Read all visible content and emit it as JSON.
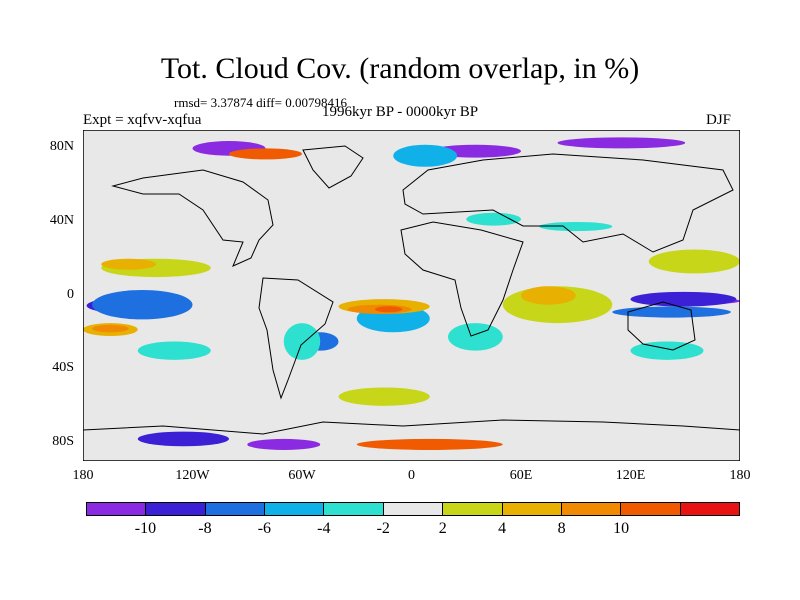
{
  "title": "Tot. Cloud Cov. (random overlap, in %)",
  "stats": "rmsd= 3.37874 diff= 0.00798416",
  "experiment": "Expt = xqfvv-xqfua",
  "period": "1996kyr BP - 0000kyr BP",
  "season": "DJF",
  "map": {
    "lat_labels": [
      "80N",
      "40N",
      "0",
      "40S",
      "80S"
    ],
    "lat_values": [
      80,
      40,
      0,
      -40,
      -80
    ],
    "lon_labels": [
      "180",
      "120W",
      "60W",
      "0",
      "60E",
      "120E",
      "180"
    ],
    "lon_values": [
      -180,
      -120,
      -60,
      0,
      60,
      120,
      180
    ],
    "lon_range": [
      -180,
      180
    ],
    "lat_range": [
      -90,
      90
    ]
  },
  "colorbar": {
    "colors": [
      "#8a2be2",
      "#3b20d6",
      "#1e6fe0",
      "#10b0e8",
      "#2de0cf",
      "#e8e8e8",
      "#c8d61a",
      "#e8b000",
      "#f08a00",
      "#f05a00",
      "#e81414"
    ],
    "labels": [
      "-10",
      "-8",
      "-6",
      "-4",
      "-2",
      "2",
      "4",
      "8",
      "10"
    ],
    "label_after_bin": [
      1,
      2,
      3,
      4,
      5,
      6,
      7,
      8,
      9
    ]
  },
  "regions": [
    {
      "cat": "-10",
      "lon": [
        -175,
        -150
      ],
      "lat": [
        -2,
        -8
      ]
    },
    {
      "cat": "-10",
      "lon": [
        -90,
        -50
      ],
      "lat": [
        -78,
        -84
      ]
    },
    {
      "cat": "-10",
      "lon": [
        -120,
        -80
      ],
      "lat": [
        76,
        84
      ]
    },
    {
      "cat": "-10",
      "lon": [
        10,
        60
      ],
      "lat": [
        75,
        82
      ]
    },
    {
      "cat": "-10",
      "lon": [
        130,
        180
      ],
      "lat": [
        -1,
        -5
      ]
    },
    {
      "cat": "-10",
      "lon": [
        80,
        150
      ],
      "lat": [
        80,
        86
      ]
    },
    {
      "cat": "-8",
      "lon": [
        -178,
        -130
      ],
      "lat": [
        -1,
        -10
      ]
    },
    {
      "cat": "-8",
      "lon": [
        120,
        178
      ],
      "lat": [
        2,
        -6
      ]
    },
    {
      "cat": "-8",
      "lon": [
        -150,
        -100
      ],
      "lat": [
        -74,
        -82
      ]
    },
    {
      "cat": "-6",
      "lon": [
        -175,
        -120
      ],
      "lat": [
        3,
        -13
      ]
    },
    {
      "cat": "-6",
      "lon": [
        -60,
        -40
      ],
      "lat": [
        -20,
        -30
      ]
    },
    {
      "cat": "-6",
      "lon": [
        110,
        175
      ],
      "lat": [
        -6,
        -12
      ]
    },
    {
      "cat": "-4",
      "lon": [
        -30,
        10
      ],
      "lat": [
        -5,
        -20
      ]
    },
    {
      "cat": "-4",
      "lon": [
        -10,
        25
      ],
      "lat": [
        70,
        82
      ]
    },
    {
      "cat": "-2",
      "lon": [
        30,
        60
      ],
      "lat": [
        45,
        38
      ]
    },
    {
      "cat": "-2",
      "lon": [
        70,
        110
      ],
      "lat": [
        40,
        35
      ]
    },
    {
      "cat": "-2",
      "lon": [
        -70,
        -50
      ],
      "lat": [
        -15,
        -35
      ]
    },
    {
      "cat": "-2",
      "lon": [
        20,
        50
      ],
      "lat": [
        -15,
        -30
      ]
    },
    {
      "cat": "-2",
      "lon": [
        -150,
        -110
      ],
      "lat": [
        -25,
        -35
      ]
    },
    {
      "cat": "-2",
      "lon": [
        120,
        160
      ],
      "lat": [
        -25,
        -35
      ]
    },
    {
      "cat": "2",
      "lon": [
        -170,
        -110
      ],
      "lat": [
        20,
        10
      ]
    },
    {
      "cat": "2",
      "lon": [
        50,
        110
      ],
      "lat": [
        5,
        -15
      ]
    },
    {
      "cat": "2",
      "lon": [
        130,
        180
      ],
      "lat": [
        25,
        12
      ]
    },
    {
      "cat": "2",
      "lon": [
        -40,
        10
      ],
      "lat": [
        -50,
        -60
      ]
    },
    {
      "cat": "4",
      "lon": [
        -170,
        -140
      ],
      "lat": [
        20,
        14
      ]
    },
    {
      "cat": "4",
      "lon": [
        -180,
        -150
      ],
      "lat": [
        -15,
        -22
      ]
    },
    {
      "cat": "4",
      "lon": [
        60,
        90
      ],
      "lat": [
        5,
        -5
      ]
    },
    {
      "cat": "4",
      "lon": [
        -40,
        10
      ],
      "lat": [
        -2,
        -10
      ]
    },
    {
      "cat": "8",
      "lon": [
        -35,
        0
      ],
      "lat": [
        -5,
        -10
      ]
    },
    {
      "cat": "8",
      "lon": [
        -175,
        -155
      ],
      "lat": [
        -16,
        -20
      ]
    },
    {
      "cat": "10",
      "lon": [
        -20,
        -5
      ],
      "lat": [
        -6,
        -9
      ]
    },
    {
      "cat": "10",
      "lon": [
        -30,
        50
      ],
      "lat": [
        -78,
        -84
      ]
    },
    {
      "cat": "10",
      "lon": [
        -100,
        -60
      ],
      "lat": [
        74,
        80
      ]
    }
  ]
}
